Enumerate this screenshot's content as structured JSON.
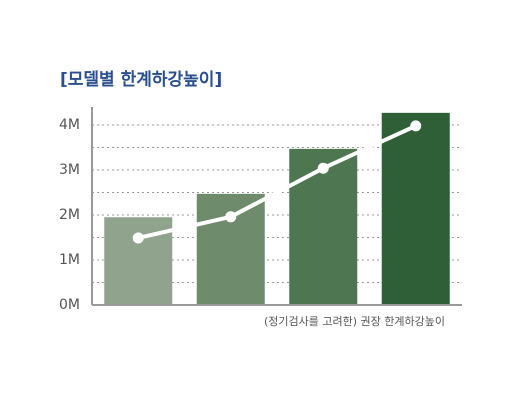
{
  "chart_data": {
    "type": "bar-line",
    "title": "[모델별 한계하강높이]",
    "x_label": "(정기검사를 고려한) 권장 한계하강높이",
    "categories": [
      null,
      null,
      null,
      null
    ],
    "series": [
      {
        "type": "bar",
        "colors": [
          "#8fa38d",
          "#6e8b6b",
          "#4e7650",
          "#2f5f37"
        ],
        "values": [
          1.95,
          2.47,
          3.47,
          4.27
        ]
      },
      {
        "type": "line",
        "color": "#ffffff",
        "values": [
          1.49,
          1.96,
          3.04,
          3.98
        ]
      }
    ],
    "ylim": [
      0,
      4.4
    ],
    "yticks": [
      {
        "value": 0,
        "label": "0M"
      },
      {
        "value": 1,
        "label": "1M"
      },
      {
        "value": 2,
        "label": "2M"
      },
      {
        "value": 3,
        "label": "3M"
      },
      {
        "value": 4,
        "label": "4M"
      }
    ],
    "minor_grid": [
      0.5,
      1.5,
      2.5,
      3.5
    ],
    "grid": true
  }
}
